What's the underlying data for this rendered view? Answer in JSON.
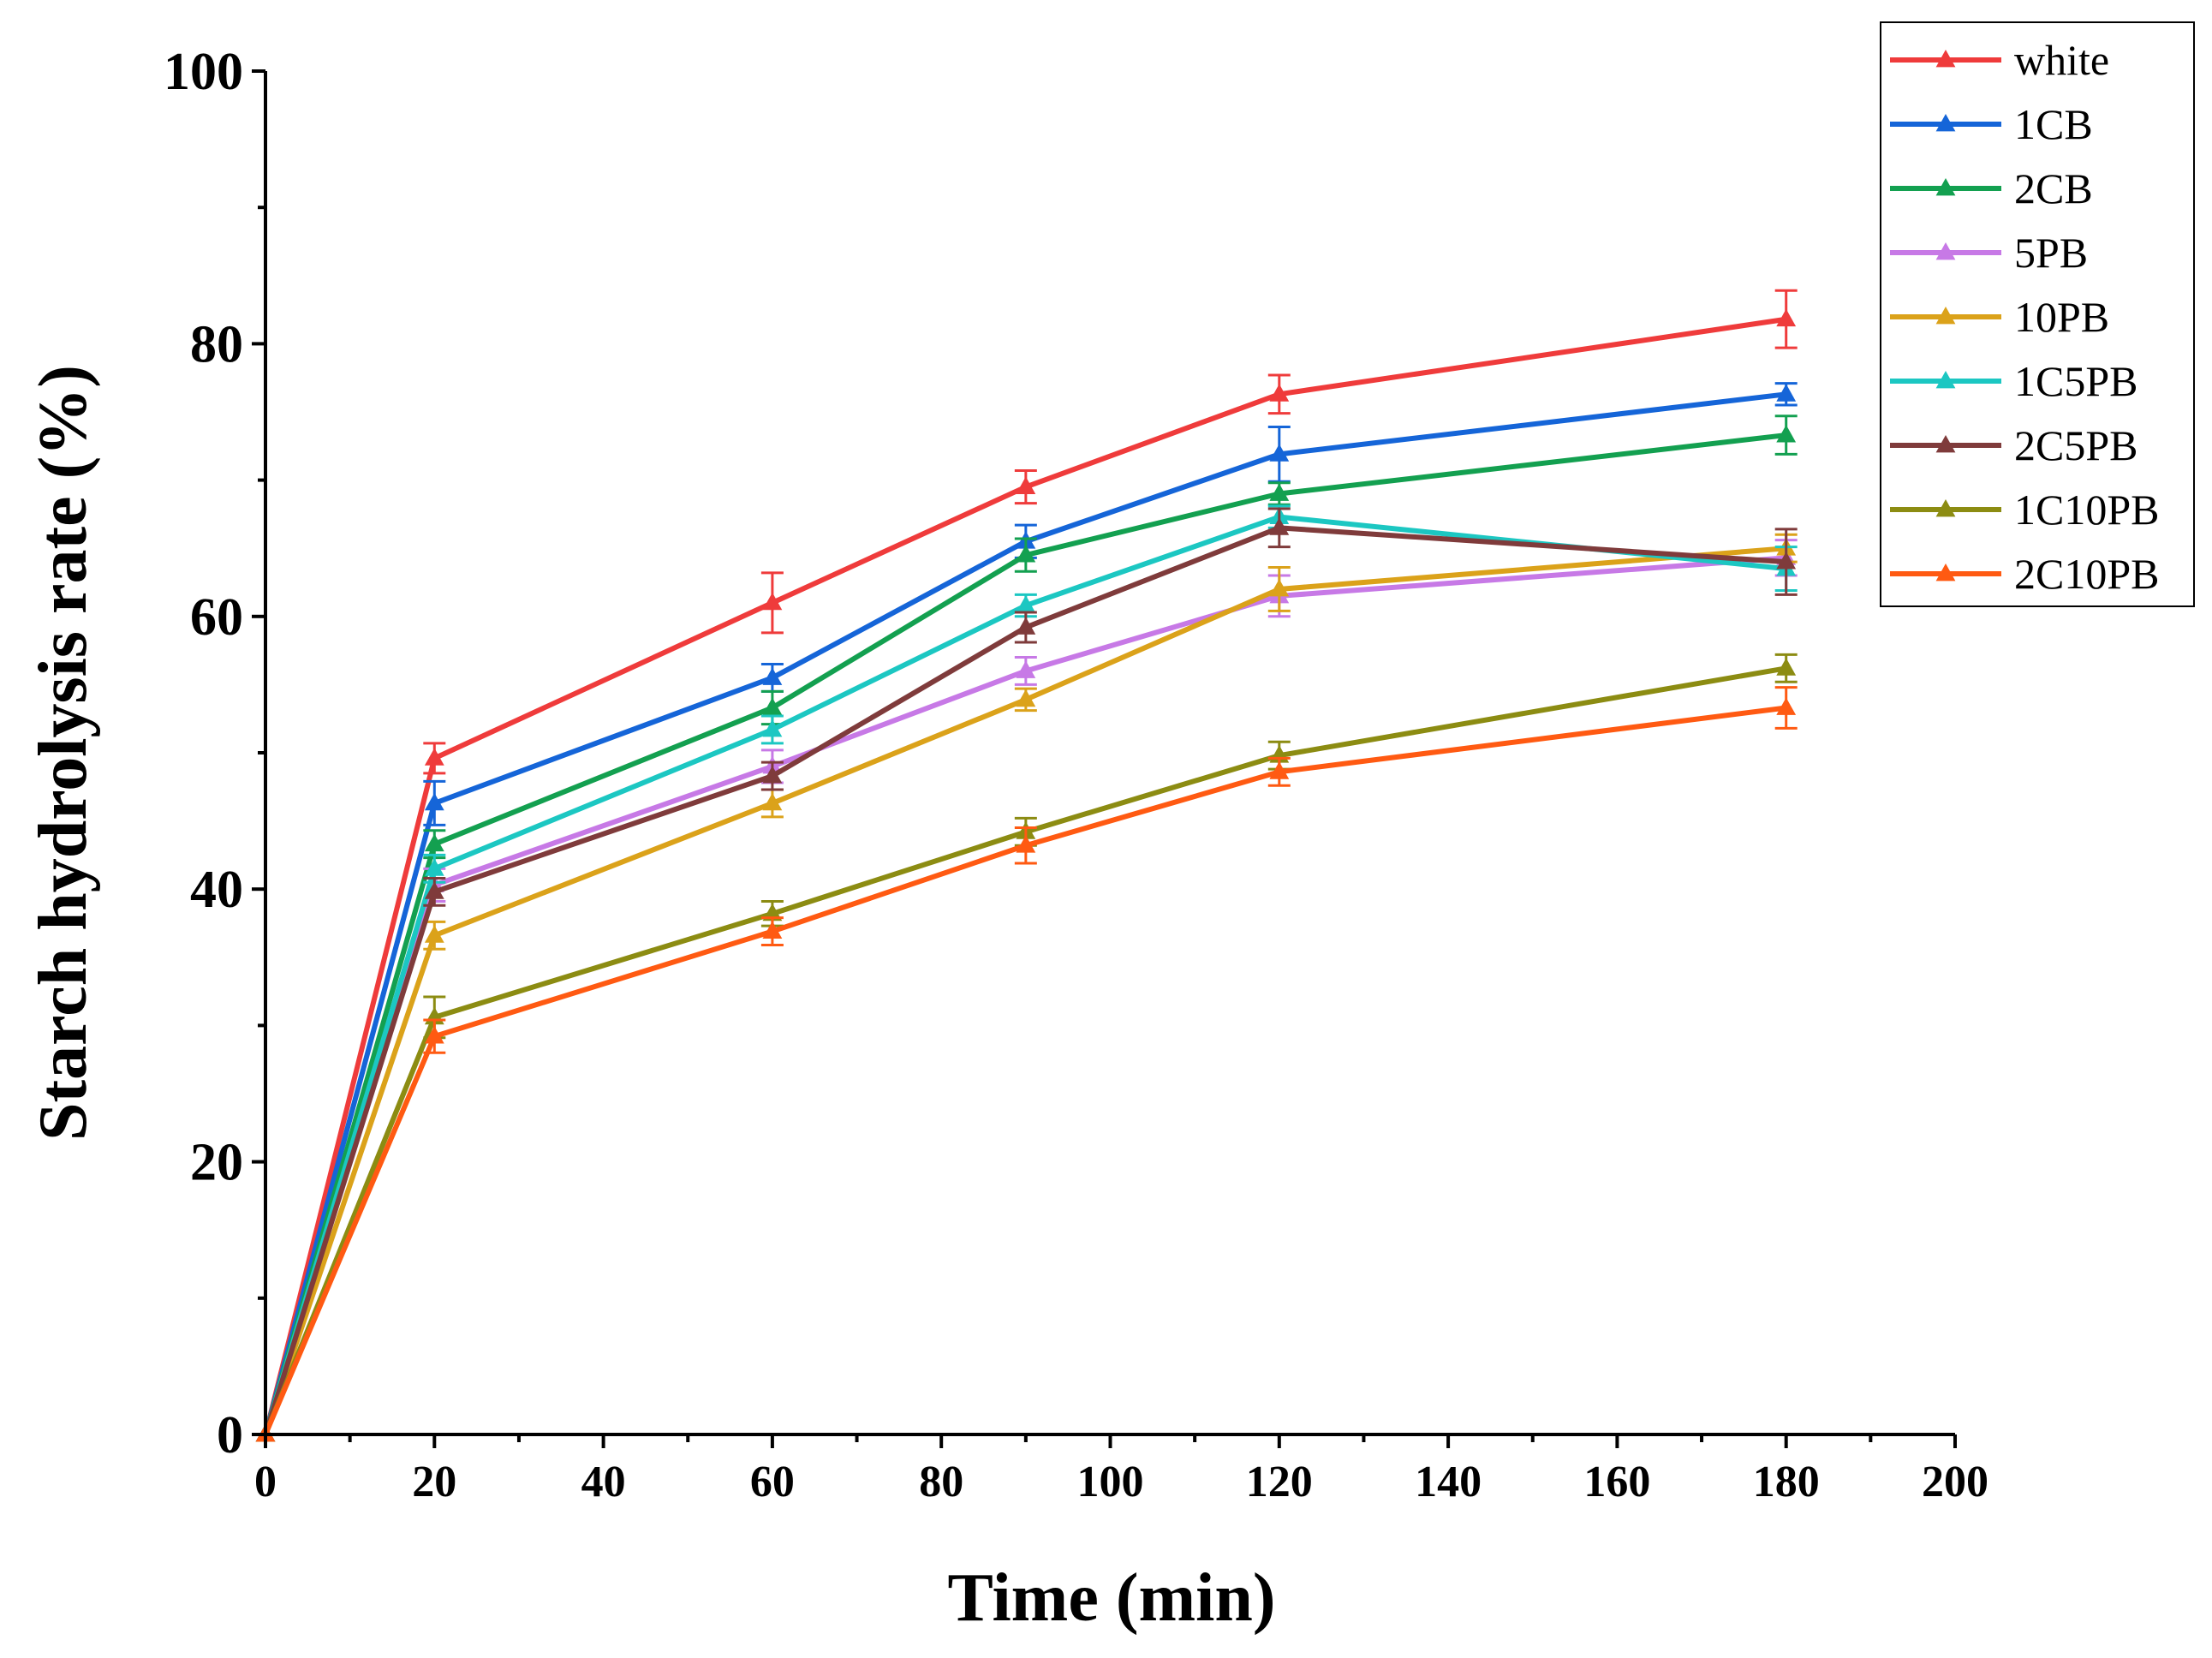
{
  "chart_data": {
    "type": "line",
    "title": "",
    "xlabel": "Time (min)",
    "ylabel": "Starch hydrolysis rate (%)",
    "xlim": [
      0,
      200
    ],
    "ylim": [
      0,
      100
    ],
    "xticks": [
      0,
      20,
      40,
      60,
      80,
      100,
      120,
      140,
      160,
      180,
      200
    ],
    "yticks": [
      0,
      20,
      40,
      60,
      80,
      100
    ],
    "x": [
      0,
      20,
      60,
      90,
      120,
      180
    ],
    "legend_position": "top-right",
    "marker": "triangle-up",
    "series": [
      {
        "name": "white",
        "color": "#ef3b3b",
        "values": [
          0,
          49.6,
          61.0,
          69.5,
          76.3,
          81.8
        ],
        "errors": [
          0,
          1.1,
          2.2,
          1.2,
          1.4,
          2.1
        ]
      },
      {
        "name": "1CB",
        "color": "#1565d8",
        "values": [
          0,
          46.3,
          55.5,
          65.5,
          71.9,
          76.3
        ],
        "errors": [
          0,
          1.6,
          1.0,
          1.2,
          2.0,
          0.8
        ]
      },
      {
        "name": "2CB",
        "color": "#13a050",
        "values": [
          0,
          43.3,
          53.3,
          64.5,
          69.0,
          73.3
        ],
        "errors": [
          0,
          1.0,
          1.2,
          1.2,
          0.8,
          1.4
        ]
      },
      {
        "name": "5PB",
        "color": "#c779e6",
        "values": [
          0,
          40.3,
          49.0,
          56.0,
          61.5,
          64.3
        ],
        "errors": [
          0,
          1.2,
          1.2,
          1.0,
          1.5,
          1.3
        ]
      },
      {
        "name": "10PB",
        "color": "#dba21a",
        "values": [
          0,
          36.6,
          46.3,
          53.9,
          62.0,
          65.0
        ],
        "errors": [
          0,
          1.0,
          1.0,
          0.8,
          1.6,
          1.0
        ]
      },
      {
        "name": "1C5PB",
        "color": "#1cc7c2",
        "values": [
          0,
          41.5,
          51.7,
          60.8,
          67.3,
          63.5
        ],
        "errors": [
          0,
          1.0,
          1.0,
          0.8,
          0.8,
          1.6
        ]
      },
      {
        "name": "2C5PB",
        "color": "#7f3b3b",
        "values": [
          0,
          39.8,
          48.3,
          59.2,
          66.5,
          64.0
        ],
        "errors": [
          0,
          1.0,
          1.0,
          1.1,
          1.4,
          2.4
        ]
      },
      {
        "name": "1C10PB",
        "color": "#8c8c12",
        "values": [
          0,
          30.6,
          38.2,
          44.2,
          49.8,
          56.2
        ],
        "errors": [
          0,
          1.5,
          0.9,
          1.0,
          1.0,
          1.0
        ]
      },
      {
        "name": "2C10PB",
        "color": "#ff5a12",
        "values": [
          0,
          29.2,
          36.9,
          43.2,
          48.6,
          53.3
        ],
        "errors": [
          0,
          1.2,
          1.0,
          1.3,
          1.0,
          1.5
        ]
      }
    ]
  }
}
